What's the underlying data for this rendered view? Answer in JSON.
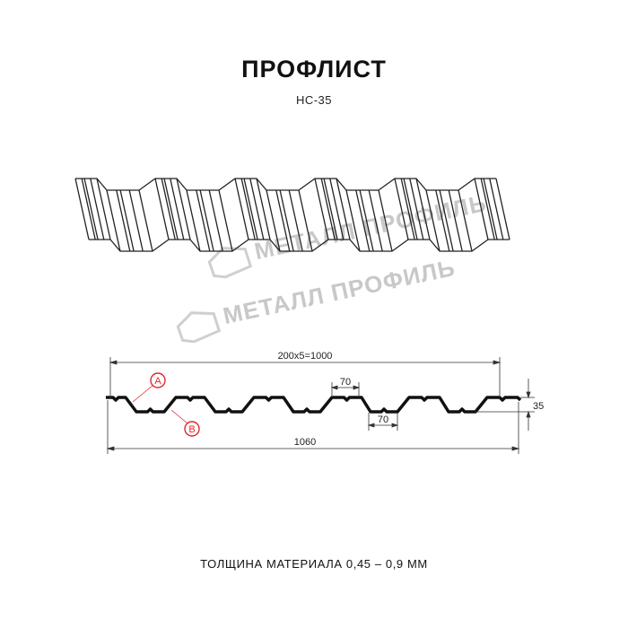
{
  "header": {
    "title": "ПРОФЛИСТ",
    "subtitle": "НС-35"
  },
  "watermark": {
    "text": "МЕТАЛЛ ПРОФИЛЬ",
    "color": "#c8c8c8"
  },
  "drawing": {
    "dimensions": {
      "pitch": "200x5=1000",
      "total_width": "1060",
      "top_flat": "70",
      "bottom_flat": "70",
      "height": "35"
    },
    "markers": [
      {
        "label": "A",
        "color": "#e3262a"
      },
      {
        "label": "B",
        "color": "#e3262a"
      }
    ],
    "line_color": "#111111"
  },
  "footer": {
    "text": "ТОЛЩИНА МАТЕРИАЛА 0,45 – 0,9 ММ"
  }
}
